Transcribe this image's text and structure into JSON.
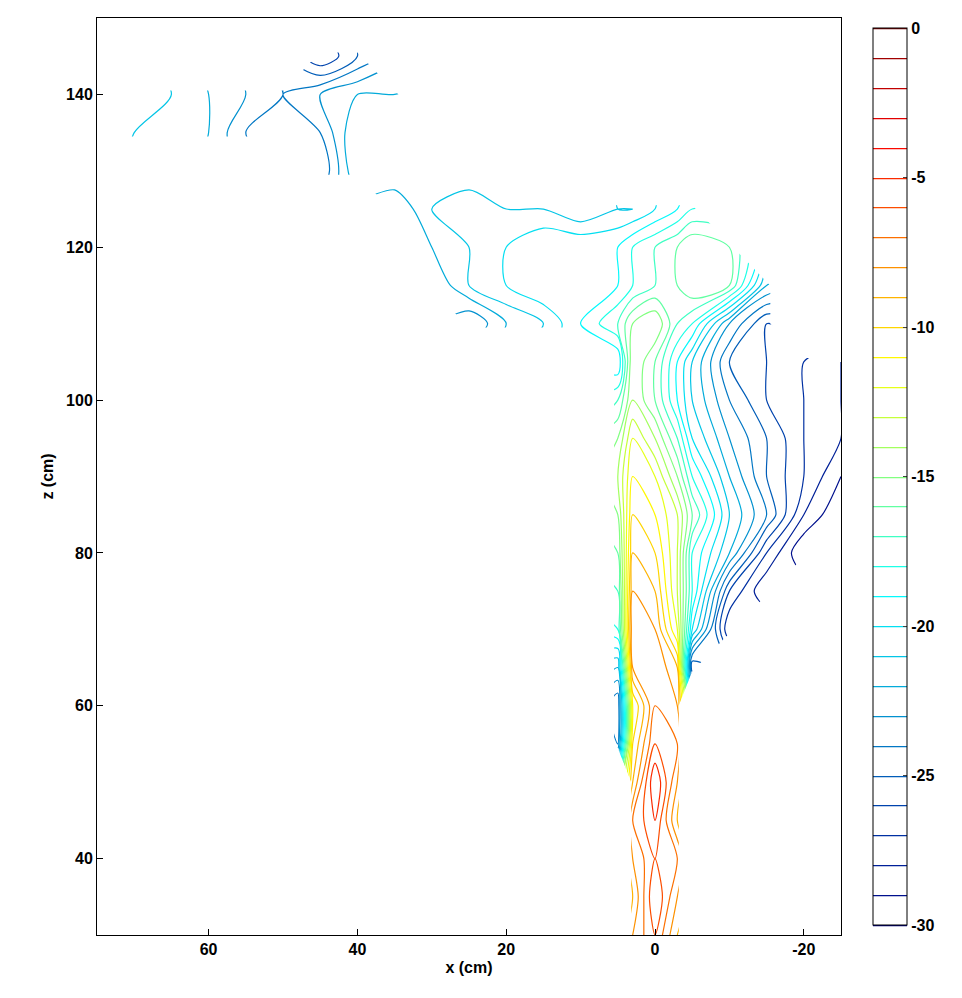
{
  "chart_data": {
    "type": "contour",
    "xlabel": "x (cm)",
    "ylabel": "z (cm)",
    "xlim": [
      75,
      -25
    ],
    "ylim": [
      30,
      150
    ],
    "xticks": [
      60,
      40,
      20,
      0,
      -20
    ],
    "yticks": [
      40,
      60,
      80,
      100,
      120,
      140
    ],
    "grid": false,
    "colorbar": {
      "range": [
        -30,
        0
      ],
      "ticks": [
        0,
        -5,
        -10,
        -15,
        -20,
        -25,
        -30
      ]
    },
    "contour_levels": {
      "start": -30,
      "end": 0,
      "size": 1
    },
    "x": [
      -25,
      -20,
      -15,
      -10,
      -5,
      -3,
      0,
      3,
      5,
      10,
      15,
      20,
      25,
      30,
      35,
      40,
      45,
      50,
      55,
      60,
      65,
      70,
      75
    ],
    "y": [
      30,
      35,
      40,
      45,
      50,
      55,
      60,
      65,
      70,
      75,
      80,
      85,
      90,
      95,
      100,
      105,
      110,
      115,
      120,
      125,
      130,
      135,
      140,
      145,
      150
    ],
    "z": [
      [
        null,
        null,
        null,
        null,
        null,
        -9,
        -6,
        -8,
        null,
        null,
        null,
        null,
        null,
        null,
        null,
        null,
        null,
        null,
        null,
        null,
        null,
        null,
        null
      ],
      [
        null,
        null,
        null,
        null,
        null,
        -8,
        -5,
        -9,
        null,
        null,
        null,
        null,
        null,
        null,
        null,
        null,
        null,
        null,
        null,
        null,
        null,
        null,
        null
      ],
      [
        null,
        null,
        null,
        null,
        null,
        -7,
        -6,
        -8,
        null,
        null,
        null,
        null,
        null,
        null,
        null,
        null,
        null,
        null,
        null,
        null,
        null,
        null,
        null
      ],
      [
        null,
        null,
        null,
        null,
        null,
        -9,
        -5,
        -7,
        null,
        null,
        null,
        null,
        null,
        null,
        null,
        null,
        null,
        null,
        null,
        null,
        null,
        null,
        null
      ],
      [
        null,
        null,
        null,
        null,
        null,
        -8,
        -4,
        -9,
        null,
        null,
        null,
        null,
        null,
        null,
        null,
        null,
        null,
        null,
        null,
        null,
        null,
        null,
        null
      ],
      [
        null,
        null,
        null,
        null,
        null,
        -7,
        -6,
        -10,
        -24,
        null,
        null,
        null,
        null,
        null,
        null,
        null,
        null,
        null,
        null,
        null,
        null,
        null,
        null
      ],
      [
        null,
        null,
        null,
        null,
        null,
        -8,
        -7,
        -11,
        -25,
        null,
        null,
        null,
        null,
        null,
        null,
        null,
        null,
        null,
        null,
        null,
        null,
        null,
        null
      ],
      [
        null,
        null,
        null,
        null,
        -26,
        -9,
        -7,
        -8,
        -22,
        null,
        null,
        null,
        null,
        null,
        null,
        null,
        null,
        null,
        null,
        null,
        null,
        null,
        null
      ],
      [
        null,
        null,
        null,
        -28,
        -20,
        -12,
        -8,
        -7,
        -18,
        null,
        null,
        null,
        null,
        null,
        null,
        null,
        null,
        null,
        null,
        null,
        null,
        null,
        null
      ],
      [
        null,
        null,
        -29,
        -26,
        -18,
        -13,
        -9,
        -8,
        -17,
        null,
        null,
        null,
        null,
        null,
        null,
        null,
        null,
        null,
        null,
        null,
        null,
        null,
        null
      ],
      [
        null,
        -30,
        -27,
        -22,
        -18,
        -13,
        -10,
        -9,
        -16,
        null,
        null,
        null,
        null,
        null,
        null,
        null,
        null,
        null,
        null,
        null,
        null,
        null,
        null
      ],
      [
        -30,
        -28,
        -24,
        -21,
        -16,
        -13,
        -11,
        -10,
        -15,
        null,
        null,
        null,
        null,
        null,
        null,
        null,
        null,
        null,
        null,
        null,
        null,
        null,
        null
      ],
      [
        -29,
        -27,
        -25,
        -22,
        -18,
        -15,
        -12,
        -11,
        -14,
        null,
        null,
        null,
        null,
        null,
        null,
        null,
        null,
        null,
        null,
        null,
        null,
        null,
        null
      ],
      [
        -28,
        -27,
        -25,
        -23,
        -20,
        -17,
        -14,
        -12,
        -15,
        null,
        null,
        null,
        null,
        null,
        null,
        null,
        null,
        null,
        null,
        null,
        null,
        null,
        null
      ],
      [
        -28,
        -27,
        -26,
        -24,
        -21,
        -19,
        -16,
        -14,
        -17,
        null,
        null,
        null,
        null,
        null,
        null,
        null,
        null,
        null,
        null,
        null,
        null,
        null,
        null
      ],
      [
        -28,
        -27,
        -26,
        -25,
        -21,
        -19,
        -16,
        -14,
        -20,
        null,
        null,
        null,
        null,
        null,
        null,
        null,
        null,
        null,
        null,
        null,
        null,
        null,
        null
      ],
      [
        null,
        null,
        -26,
        -23,
        -18,
        -17,
        -14,
        -15,
        -17,
        -19,
        -21,
        -22,
        -24,
        null,
        null,
        null,
        null,
        null,
        null,
        null,
        null,
        null,
        null
      ],
      [
        null,
        null,
        -22,
        -16,
        -15,
        -16,
        -17,
        -18,
        -19,
        -19,
        -19,
        -20,
        -21,
        -23,
        null,
        null,
        null,
        null,
        null,
        null,
        null,
        null,
        null
      ],
      [
        null,
        null,
        null,
        -16,
        -15,
        -16,
        -17,
        -18,
        -19,
        -19,
        -19,
        -20,
        -21,
        -22,
        null,
        null,
        null,
        null,
        null,
        null,
        null,
        null,
        null
      ],
      [
        null,
        null,
        null,
        null,
        -18,
        -19,
        -20,
        -21,
        -21,
        -22,
        -21,
        -21,
        -20,
        -21,
        -23,
        null,
        null,
        null,
        null,
        null,
        null,
        null,
        null
      ],
      [
        null,
        null,
        null,
        null,
        null,
        null,
        null,
        null,
        null,
        null,
        null,
        null,
        -22,
        -21,
        -21,
        -21,
        -25,
        null,
        null,
        null,
        null,
        null,
        null
      ],
      [
        null,
        null,
        null,
        null,
        null,
        null,
        null,
        null,
        null,
        null,
        null,
        null,
        null,
        -21,
        -21,
        -21,
        -24,
        -25,
        -24,
        -22,
        -21,
        -21,
        -20
      ],
      [
        null,
        null,
        null,
        null,
        null,
        null,
        null,
        null,
        null,
        null,
        null,
        null,
        null,
        null,
        -22,
        -22,
        -23,
        -24,
        -23,
        -22,
        -21,
        -20,
        -20
      ],
      [
        null,
        null,
        null,
        null,
        null,
        null,
        null,
        null,
        null,
        null,
        null,
        null,
        null,
        null,
        null,
        -25,
        -27,
        null,
        null,
        null,
        null,
        null,
        null
      ],
      [
        null,
        null,
        null,
        null,
        null,
        null,
        null,
        null,
        null,
        null,
        null,
        null,
        null,
        null,
        null,
        null,
        null,
        null,
        null,
        null,
        null,
        null,
        null
      ]
    ]
  }
}
